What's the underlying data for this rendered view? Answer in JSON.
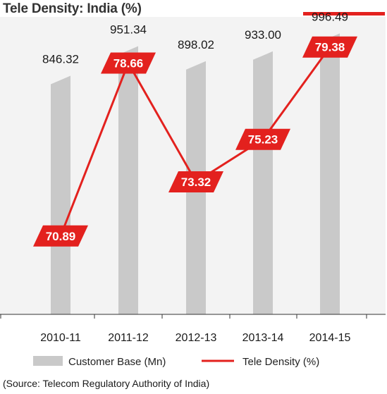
{
  "title": "Tele Density: India (%)",
  "source": "(Source: Telecom Regulatory Authority of India)",
  "colors": {
    "bar": "#c9c9c9",
    "line": "#e3211e",
    "label_bg": "#e3211e",
    "panel": "#f3f3f3"
  },
  "chart_data": {
    "type": "bar",
    "title": "Tele Density: India (%)",
    "categories": [
      "2010-11",
      "2011-12",
      "2012-13",
      "2013-14",
      "2014-15"
    ],
    "series": [
      {
        "name": "Customer Base (Mn)",
        "type": "bar",
        "values": [
          846.32,
          951.34,
          898.02,
          933.0,
          996.49
        ],
        "labels": [
          "846.32",
          "951.34",
          "898.02",
          "933.00",
          "996.49"
        ]
      },
      {
        "name": "Tele Density (%)",
        "type": "line",
        "values": [
          70.89,
          78.66,
          73.32,
          75.23,
          79.38
        ],
        "labels": [
          "70.89",
          "78.66",
          "73.32",
          "75.23",
          "79.38"
        ]
      }
    ],
    "bar_ylim": [
      0,
      1200
    ],
    "line_ylim": [
      68,
      82
    ],
    "grid": false,
    "legend_position": "bottom"
  }
}
